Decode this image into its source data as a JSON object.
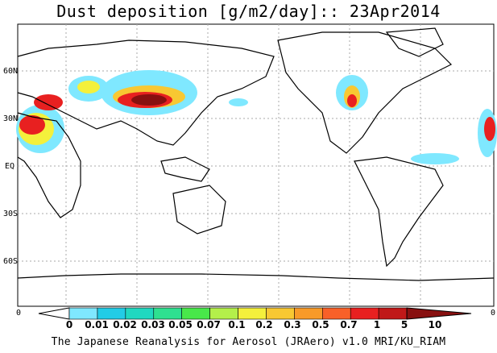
{
  "title": "Dust deposition [g/m2/day]:: 23Apr2014",
  "credit": "The Japanese Reanalysis for Aerosol (JRAero) v1.0 MRI/KU_RIAM",
  "latitude_labels": [
    "60N",
    "30N",
    "EQ",
    "30S",
    "60S"
  ],
  "colorbar": {
    "edge_left": "0",
    "edge_right": "0",
    "labels": [
      "0",
      "0.01",
      "0.02",
      "0.03",
      "0.05",
      "0.07",
      "0.1",
      "0.2",
      "0.3",
      "0.5",
      "0.7",
      "1",
      "5",
      "10"
    ],
    "colors": [
      "#ffffff",
      "#7fe8ff",
      "#22cce6",
      "#20d8c0",
      "#2ee090",
      "#48e84a",
      "#b4f04a",
      "#f4f03c",
      "#f8c832",
      "#f89a28",
      "#f86028",
      "#e82020",
      "#c01818",
      "#881010"
    ]
  },
  "map_colors": {
    "low": "#7fe8ff",
    "mid": "#f4f03c",
    "high": "#e82020",
    "max": "#881010"
  }
}
